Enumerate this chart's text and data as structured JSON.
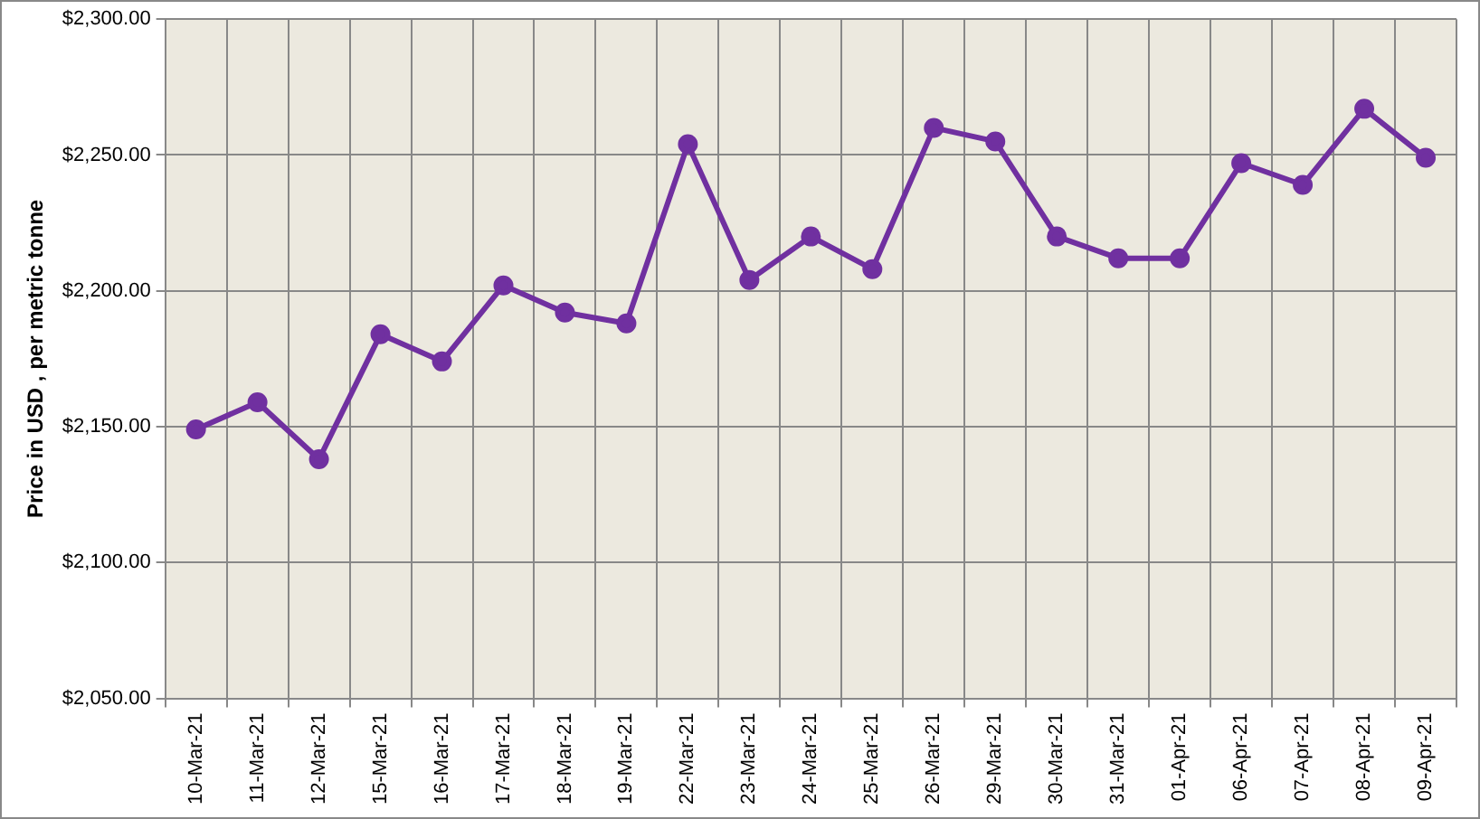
{
  "chart_data": {
    "type": "line",
    "ylabel": "Price in USD , per metric tonne",
    "categories": [
      "10-Mar-21",
      "11-Mar-21",
      "12-Mar-21",
      "15-Mar-21",
      "16-Mar-21",
      "17-Mar-21",
      "18-Mar-21",
      "19-Mar-21",
      "22-Mar-21",
      "23-Mar-21",
      "24-Mar-21",
      "25-Mar-21",
      "26-Mar-21",
      "29-Mar-21",
      "30-Mar-21",
      "31-Mar-21",
      "01-Apr-21",
      "06-Apr-21",
      "07-Apr-21",
      "08-Apr-21",
      "09-Apr-21"
    ],
    "series": [
      {
        "color": "#7030a0",
        "values": [
          2149,
          2159,
          2138,
          2184,
          2174,
          2202,
          2192,
          2188,
          2254,
          2204,
          2220,
          2208,
          2260,
          2255,
          2220,
          2212,
          2212,
          2247,
          2239,
          2267,
          2249
        ]
      }
    ],
    "ylim": [
      2050,
      2300
    ],
    "yticks": [
      {
        "value": 2050,
        "label": "$2,050.00"
      },
      {
        "value": 2100,
        "label": "$2,100.00"
      },
      {
        "value": 2150,
        "label": "$2,150.00"
      },
      {
        "value": 2200,
        "label": "$2,200.00"
      },
      {
        "value": 2250,
        "label": "$2,250.00"
      },
      {
        "value": 2300,
        "label": "$2,300.00"
      }
    ],
    "grid": true,
    "marker": "circle",
    "line_style": "solid",
    "legend": false
  }
}
